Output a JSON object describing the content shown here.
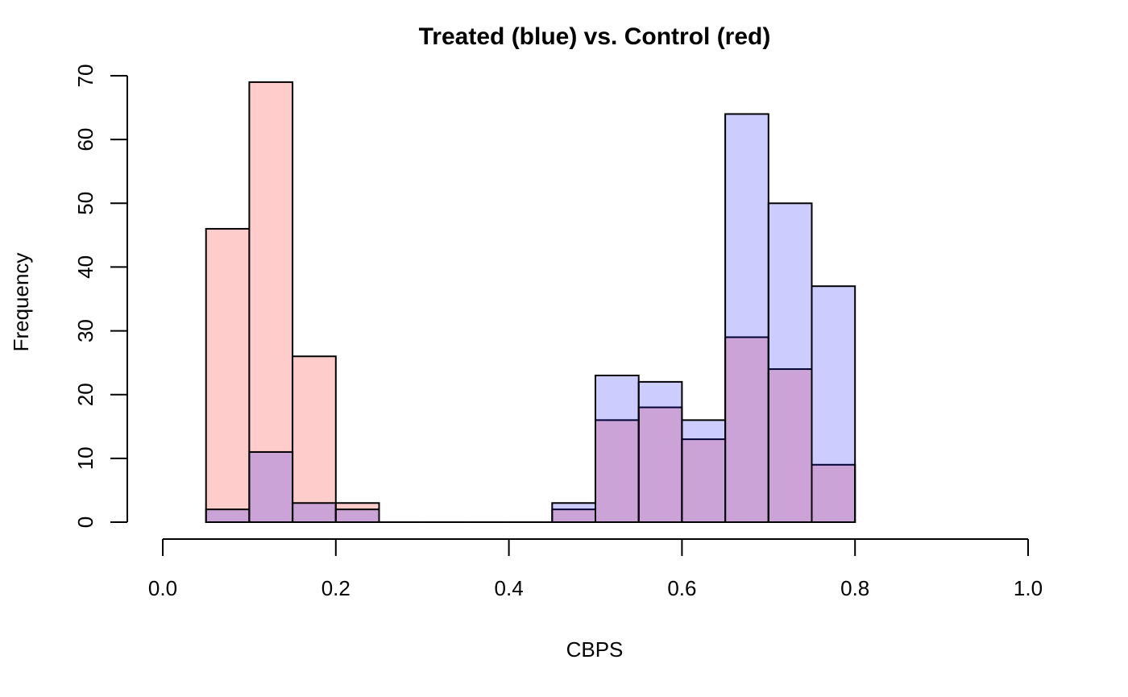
{
  "chart_data": {
    "type": "bar",
    "title": "Treated (blue) vs. Control (red)",
    "xlabel": "CBPS",
    "ylabel": "Frequency",
    "xlim": [
      0,
      1
    ],
    "ylim": [
      0,
      70
    ],
    "x_ticks": [
      "0.0",
      "0.2",
      "0.4",
      "0.6",
      "0.8",
      "1.0"
    ],
    "y_ticks": [
      "0",
      "10",
      "20",
      "30",
      "40",
      "50",
      "60",
      "70"
    ],
    "grid": false,
    "legend": "none",
    "bin_edges": [
      0.05,
      0.1,
      0.15,
      0.2,
      0.25,
      0.3,
      0.35,
      0.4,
      0.45,
      0.5,
      0.55,
      0.6,
      0.65,
      0.7,
      0.75,
      0.8
    ],
    "series": [
      {
        "color": "#ffcccc",
        "values": [
          46,
          69,
          26,
          3,
          0,
          0,
          0,
          0,
          2,
          16,
          18,
          13,
          29,
          24,
          9
        ]
      },
      {
        "color": "#ccccff",
        "values": [
          2,
          11,
          3,
          2,
          0,
          0,
          0,
          0,
          3,
          23,
          22,
          16,
          64,
          50,
          37
        ]
      }
    ]
  }
}
